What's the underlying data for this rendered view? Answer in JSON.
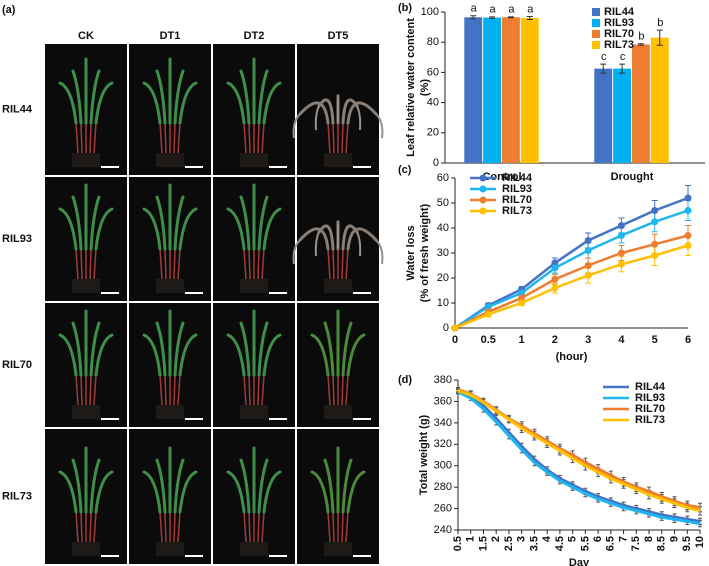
{
  "image_panel": {
    "label": "(a)",
    "columns": [
      "CK",
      "DT1",
      "DT2",
      "DT5"
    ],
    "rows": [
      "RIL44",
      "RIL93",
      "RIL70",
      "RIL73"
    ]
  },
  "chart_data": [
    {
      "type": "bar",
      "panel": "(b)",
      "y_label": [
        "Leaf relative water content",
        "(%)"
      ],
      "categories": [
        "Control",
        "Drought"
      ],
      "series": [
        {
          "name": "RIL44",
          "color": "#4472c4",
          "values": [
            96.5,
            62.5
          ],
          "errors": [
            1,
            3
          ],
          "letters": [
            "a",
            "c"
          ]
        },
        {
          "name": "RIL93",
          "color": "#00b0f0",
          "values": [
            96.3,
            62.5
          ],
          "errors": [
            0.5,
            3
          ],
          "letters": [
            "a",
            "c"
          ]
        },
        {
          "name": "RIL70",
          "color": "#ed7d31",
          "values": [
            96.5,
            78.5
          ],
          "errors": [
            0.3,
            0.5
          ],
          "letters": [
            "a",
            "b"
          ]
        },
        {
          "name": "RIL73",
          "color": "#ffc000",
          "values": [
            96,
            83
          ],
          "errors": [
            1,
            5
          ],
          "letters": [
            "a",
            "b"
          ]
        }
      ],
      "ylim": [
        0,
        100
      ],
      "yticks": [
        0,
        20,
        40,
        60,
        80,
        100
      ]
    },
    {
      "type": "line",
      "panel": "(c)",
      "y_label": [
        "Water loss",
        "(% of fresh weight)"
      ],
      "x_label": "(hour)",
      "markers": true,
      "categories": [
        "0",
        "0.5",
        "1",
        "2",
        "3",
        "4",
        "5",
        "6"
      ],
      "series": [
        {
          "name": "RIL44",
          "color": "#4472c4",
          "values": [
            0,
            9,
            15.5,
            26,
            35,
            41,
            47,
            52
          ],
          "errors": [
            0,
            1,
            1,
            2,
            3,
            3,
            4,
            5
          ]
        },
        {
          "name": "RIL93",
          "color": "#1fb5ef",
          "values": [
            0,
            8.5,
            14,
            24,
            31,
            37,
            42.5,
            47
          ],
          "errors": [
            0,
            1,
            1,
            2,
            3,
            3,
            4,
            4
          ]
        },
        {
          "name": "RIL70",
          "color": "#ed7d31",
          "values": [
            0,
            6.5,
            12,
            19.5,
            25,
            30,
            33.5,
            37
          ],
          "errors": [
            0,
            1,
            1,
            2,
            3,
            3,
            4,
            4
          ]
        },
        {
          "name": "RIL73",
          "color": "#ffc000",
          "values": [
            0,
            5.5,
            10,
            16,
            21,
            25.5,
            29,
            33
          ],
          "errors": [
            0,
            1,
            1,
            2,
            3,
            3,
            4,
            4
          ]
        }
      ],
      "ylim": [
        0,
        60
      ],
      "yticks": [
        0,
        10,
        20,
        30,
        40,
        50,
        60
      ]
    },
    {
      "type": "line",
      "panel": "(d)",
      "y_label": [
        "Total weight (g)"
      ],
      "x_label": "Day",
      "markers": false,
      "x": [
        0.5,
        1,
        1.5,
        2,
        2.5,
        3,
        3.5,
        4,
        4.5,
        5,
        5.5,
        6,
        6.5,
        7,
        7.5,
        8,
        8.5,
        9,
        9.5,
        10
      ],
      "series": [
        {
          "name": "RIL44",
          "color": "#4472c4",
          "values": [
            370,
            365,
            356,
            344,
            331,
            318,
            306,
            296,
            288,
            282,
            276,
            271,
            267,
            263,
            260,
            257,
            254,
            252,
            250,
            248
          ],
          "errors": [
            2,
            2,
            3,
            3,
            3,
            3,
            3,
            3,
            3,
            3,
            3,
            3,
            3,
            3,
            3,
            3,
            3,
            3,
            3,
            3
          ]
        },
        {
          "name": "RIL93",
          "color": "#1fb5ef",
          "values": [
            369,
            363,
            353,
            341,
            328,
            315,
            303,
            294,
            286,
            280,
            274,
            269,
            265,
            261,
            258,
            255,
            252,
            250,
            248,
            246
          ],
          "errors": [
            2,
            2,
            3,
            3,
            3,
            3,
            3,
            3,
            3,
            3,
            3,
            3,
            3,
            3,
            3,
            3,
            3,
            3,
            3,
            3
          ]
        },
        {
          "name": "RIL70",
          "color": "#ed7d31",
          "values": [
            371,
            367,
            360,
            352,
            344,
            337,
            330,
            323,
            316,
            310,
            303,
            297,
            291,
            285,
            280,
            276,
            271,
            267,
            263,
            261
          ],
          "errors": [
            2,
            3,
            3,
            3,
            3,
            4,
            4,
            4,
            4,
            4,
            4,
            4,
            4,
            4,
            4,
            4,
            4,
            4,
            4,
            4
          ]
        },
        {
          "name": "RIL73",
          "color": "#ffc000",
          "values": [
            370,
            366,
            359,
            351,
            343,
            335,
            328,
            321,
            314,
            307,
            300,
            294,
            288,
            283,
            278,
            273,
            269,
            265,
            261,
            258
          ],
          "errors": [
            2,
            3,
            3,
            3,
            3,
            4,
            4,
            4,
            4,
            4,
            4,
            4,
            4,
            4,
            4,
            4,
            4,
            4,
            4,
            4
          ]
        }
      ],
      "xlim": [
        0.5,
        10
      ],
      "xticks": [
        0.5,
        1,
        1.5,
        2,
        2.5,
        3,
        3.5,
        4,
        4.5,
        5,
        5.5,
        6,
        6.5,
        7,
        7.5,
        8,
        8.5,
        9,
        9.5,
        10
      ],
      "ylim": [
        240,
        380
      ],
      "yticks": [
        240,
        260,
        280,
        300,
        320,
        340,
        360,
        380
      ]
    }
  ]
}
